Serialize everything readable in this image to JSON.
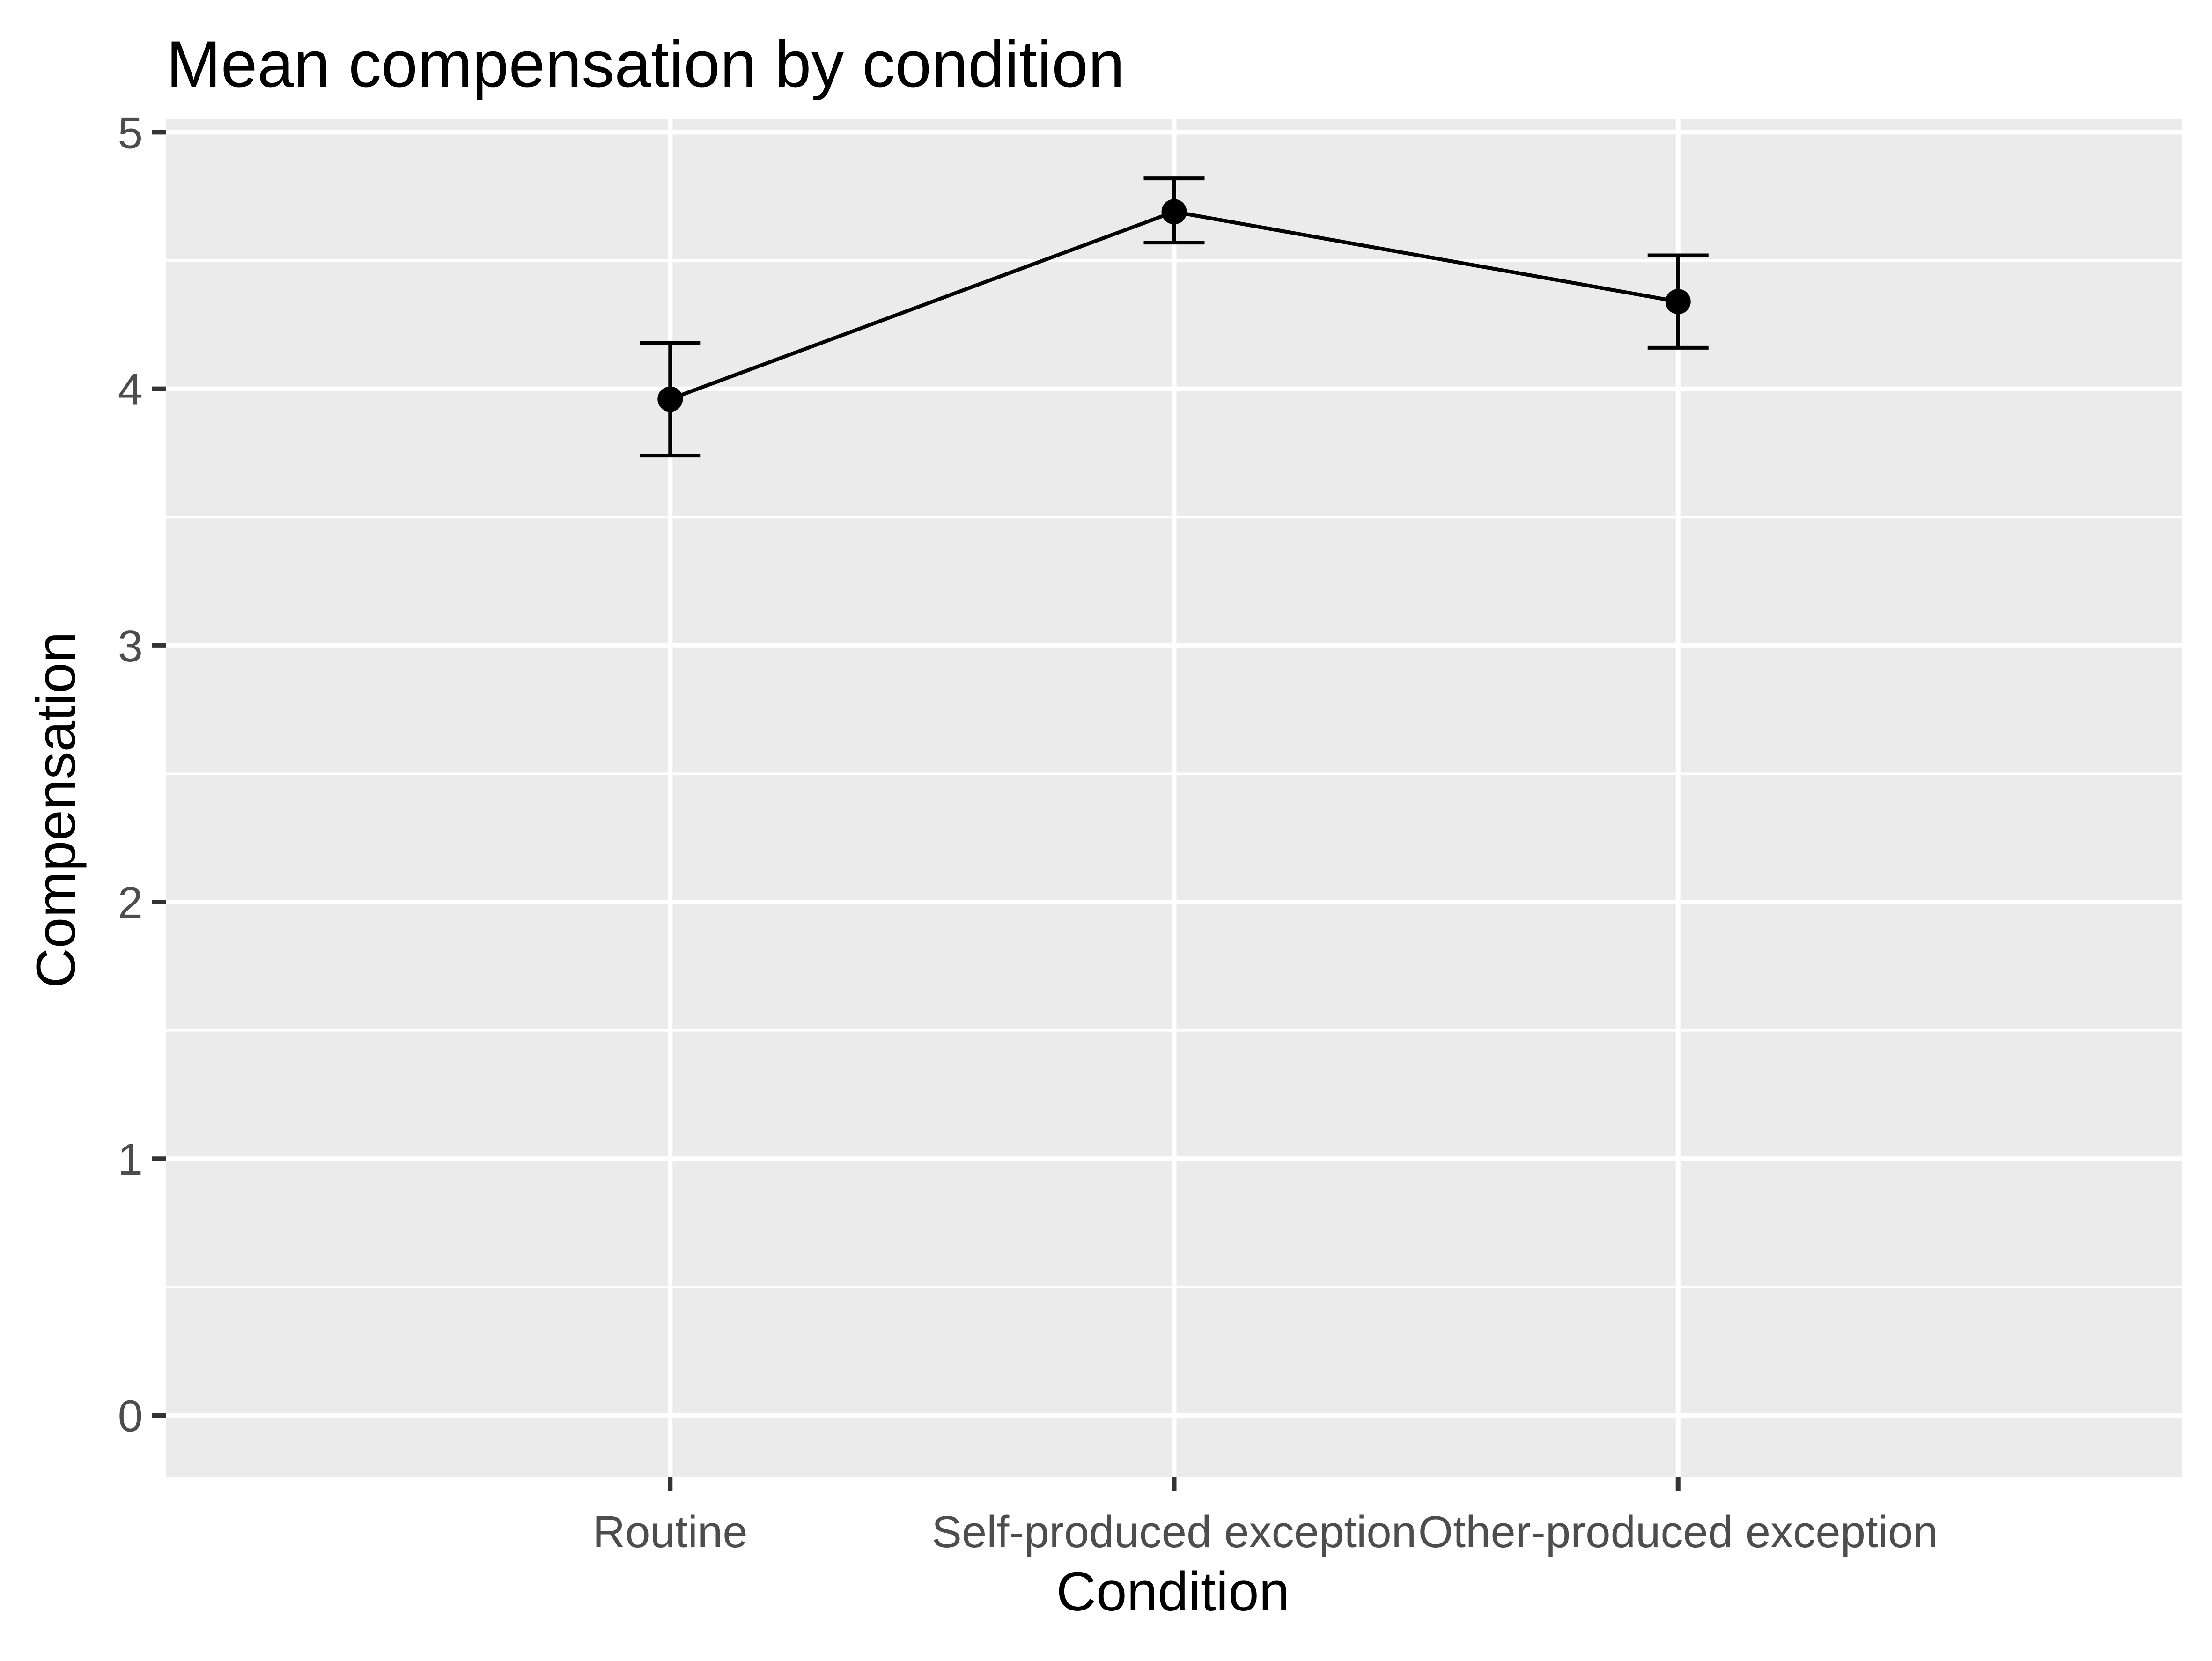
{
  "chart_data": {
    "type": "line",
    "title": "Mean compensation by condition",
    "xlabel": "Condition",
    "ylabel": "Compensation",
    "categories": [
      "Routine",
      "Self-produced exception",
      "Other-produced exception"
    ],
    "series": [
      {
        "values": [
          3.96,
          4.69,
          4.34
        ],
        "error_low": [
          3.74,
          4.57,
          4.16
        ],
        "error_high": [
          4.18,
          4.82,
          4.52
        ]
      }
    ],
    "ylim": [
      -0.24,
      5.05
    ],
    "yticks": [
      0,
      1,
      2,
      3,
      4,
      5
    ],
    "ytick_labels": [
      "0",
      "1",
      "2",
      "3",
      "4",
      "5"
    ],
    "grid": true,
    "legend": "none",
    "colors": {
      "panel": "#EBEBEB",
      "grid": "#FFFFFF",
      "line": "#000000",
      "tick": "#333333",
      "tick_label": "#4D4D4D"
    }
  }
}
